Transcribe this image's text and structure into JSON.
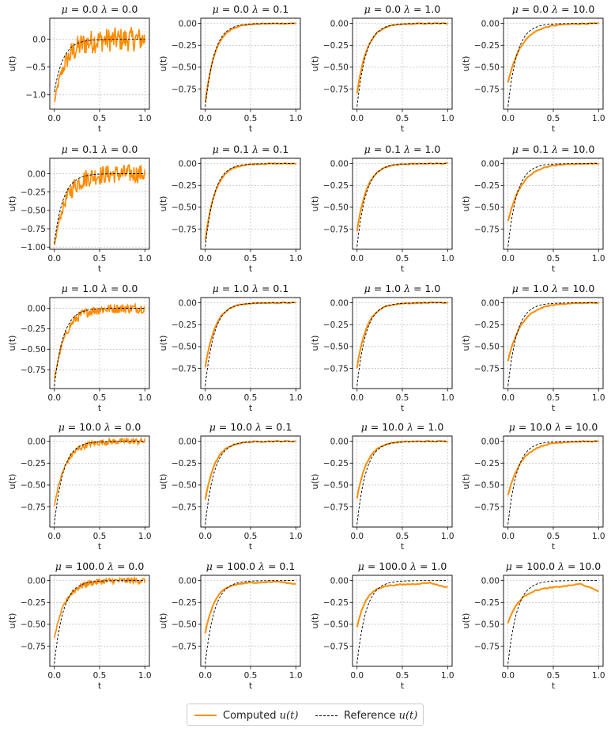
{
  "chart_data": {
    "type": "line",
    "layout": {
      "rows": 5,
      "cols": 4
    },
    "xlabel": "t",
    "ylabel": "u(t)",
    "mu_values": [
      "0.0",
      "0.1",
      "1.0",
      "10.0",
      "100.0"
    ],
    "lambda_values": [
      "0.0",
      "0.1",
      "1.0",
      "10.0"
    ],
    "xlim": [
      -0.05,
      1.05
    ],
    "x_ticks": [
      0.0,
      0.5,
      1.0
    ],
    "x_tick_labels": [
      "0.0",
      "0.5",
      "1.0"
    ],
    "y_tick_labels_default": [
      "0.00",
      "-0.25",
      "-0.50",
      "-0.75"
    ],
    "y_ticks_default": [
      0.0,
      -0.25,
      -0.5,
      -0.75
    ],
    "ylim_default": [
      -0.98,
      0.06
    ],
    "special_axes": [
      {
        "row": 0,
        "col": 0,
        "ylim": [
          -1.26,
          0.38
        ],
        "y_ticks": [
          0.0,
          -0.5,
          -1.0
        ],
        "y_tick_labels": [
          "0.0",
          "-0.5",
          "-1.0"
        ]
      },
      {
        "row": 1,
        "col": 0,
        "ylim": [
          -1.03,
          0.21
        ],
        "y_ticks": [
          0.0,
          -0.25,
          -0.5,
          -0.75,
          -1.0
        ],
        "y_tick_labels": [
          "0.00",
          "-0.25",
          "-0.50",
          "-0.75",
          "-1.00"
        ]
      },
      {
        "row": 2,
        "col": 0,
        "ylim": [
          -0.98,
          0.13
        ],
        "y_ticks": [
          0.0,
          -0.25,
          -0.5,
          -0.75
        ],
        "y_tick_labels": [
          "0.00",
          "-0.25",
          "-0.50",
          "-0.75"
        ]
      }
    ],
    "grid": true,
    "noise_amplitude_by_row_lambda0": [
      0.22,
      0.13,
      0.06,
      0.035,
      0.035
    ],
    "computed_start_by_lambda": {
      "0.0": [
        -1.15,
        -1.0,
        -0.88,
        -0.74,
        -0.66
      ],
      "0.1": [
        -0.9,
        -0.88,
        -0.74,
        -0.67,
        -0.6
      ],
      "1.0": [
        -0.8,
        -0.77,
        -0.74,
        -0.65,
        -0.53
      ],
      "10.0": [
        -0.67,
        -0.66,
        -0.66,
        -0.61,
        -0.48
      ]
    },
    "reference": {
      "u0": -0.95,
      "decay": 10
    },
    "series": [
      {
        "name": "Computed u(t)",
        "color": "#ff8c00",
        "style": "solid"
      },
      {
        "name": "Reference u(t)",
        "color": "#000000",
        "style": "dashed"
      }
    ],
    "legend": {
      "placement": "bottom-center",
      "computed_prefix": "Computed ",
      "reference_prefix": "Reference ",
      "var_label": "u(t)"
    }
  }
}
